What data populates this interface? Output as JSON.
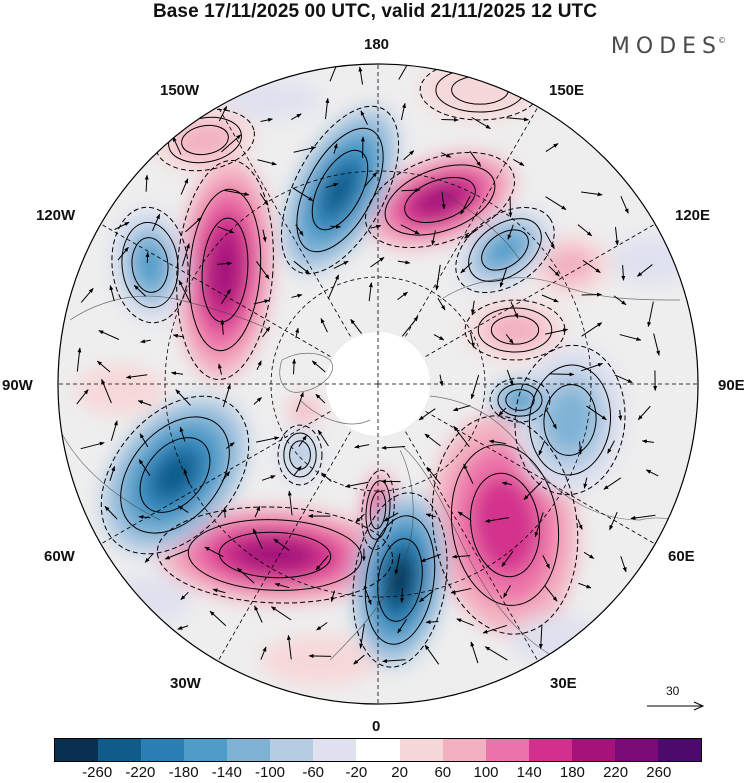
{
  "header": {
    "title": "Base 17/11/2025 00 UTC, valid 21/11/2025 12 UTC",
    "brand": "MODES",
    "brand_mark": "©"
  },
  "map": {
    "projection": "polar-stereographic-north",
    "lon_labels": {
      "top": "180",
      "top_left": "150W",
      "top_right": "150E",
      "upper_left": "120W",
      "upper_right": "120E",
      "left": "90W",
      "right": "90E",
      "lower_left": "60W",
      "lower_right": "60E",
      "bottom_left": "30W",
      "bottom_right": "30E",
      "bottom": "0"
    },
    "reference_vector": "30"
  },
  "colorbar": {
    "ticks": [
      "-260",
      "-220",
      "-180",
      "-140",
      "-100",
      "-60",
      "-20",
      "20",
      "60",
      "100",
      "140",
      "180",
      "220",
      "260"
    ],
    "colors": [
      "#08304f",
      "#0f5c8a",
      "#2b7fb4",
      "#4f9cc9",
      "#7fb3d6",
      "#b6cce3",
      "#dfe1ef",
      "#ffffff",
      "#f7d8d8",
      "#f3b0c0",
      "#ec73a9",
      "#d3308d",
      "#a4127a",
      "#7a0a75",
      "#4b0a6c"
    ]
  }
}
